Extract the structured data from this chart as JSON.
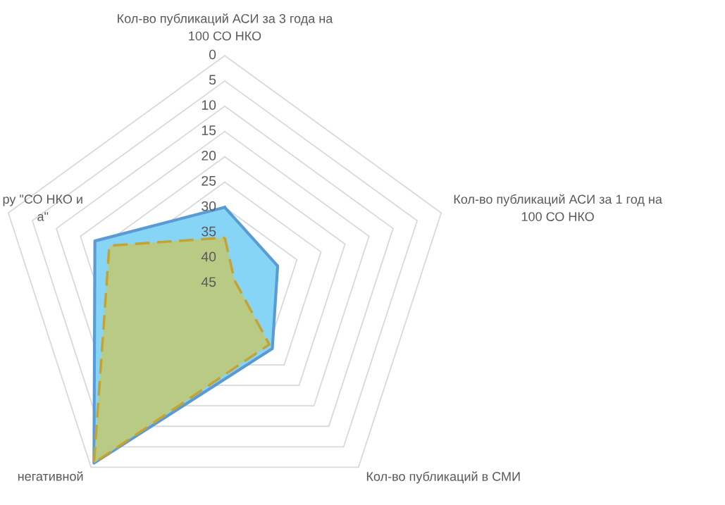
{
  "chart_data": {
    "type": "radar",
    "categories": [
      "Кол-во публикаций АСИ за 3 года на\n100 СО НКО",
      "Кол-во публикаций АСИ за 1 год на\n100 СО НКО",
      "Кол-во публикаций в СМИ",
      "негативной",
      "ру \"СО НКО и\nа\""
    ],
    "series": [
      {
        "color": "#5b9bd5",
        "values": [
          30,
          34,
          29,
          1,
          18
        ]
      },
      {
        "color": "#c4a332",
        "values": [
          36,
          43,
          30,
          1,
          21
        ],
        "line_style": "dashed"
      }
    ],
    "ylim": [
      45,
      0
    ],
    "yticks": [
      0,
      5,
      10,
      15,
      20,
      25,
      30,
      35,
      40,
      45
    ],
    "grid": true
  }
}
